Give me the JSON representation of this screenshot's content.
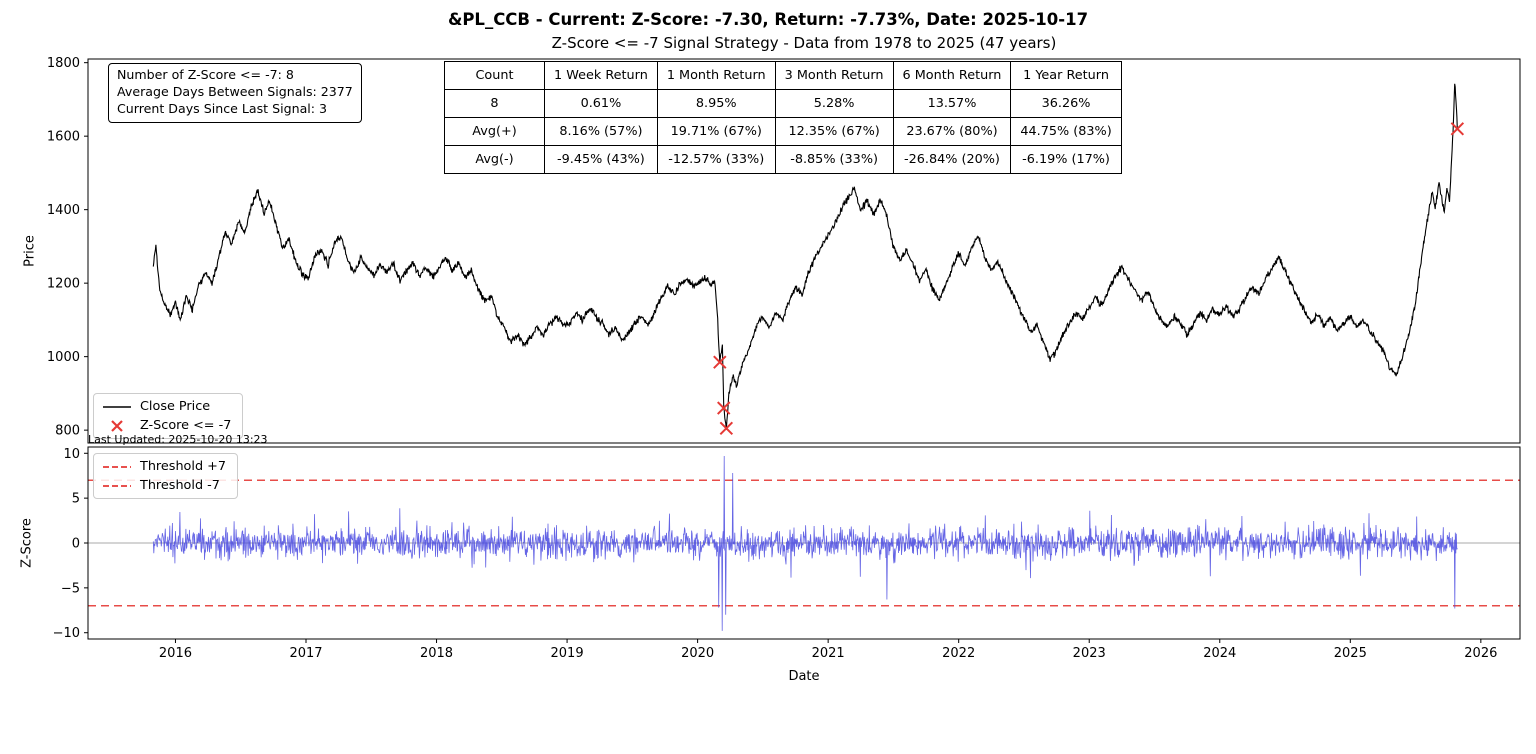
{
  "title": "&PL_CCB - Current: Z-Score: -7.30, Return: -7.73%, Date: 2025-10-17",
  "subtitle": "Z-Score <= -7 Signal Strategy - Data from 1978 to 2025 (47 years)",
  "last_updated": "Last Updated: 2025-10-20 13:23",
  "info_box": {
    "lines": [
      "Number of Z-Score <= -7: 8",
      "Average Days Between Signals: 2377",
      "Current Days Since Last Signal: 3"
    ]
  },
  "stats_table": {
    "headers": [
      "Count",
      "1 Week Return",
      "1 Month Return",
      "3 Month Return",
      "6 Month Return",
      "1 Year Return"
    ],
    "rows": [
      [
        "8",
        "0.61%",
        "8.95%",
        "5.28%",
        "13.57%",
        "36.26%"
      ],
      [
        "Avg(+)",
        "8.16% (57%)",
        "19.71% (67%)",
        "12.35% (67%)",
        "23.67% (80%)",
        "44.75% (83%)"
      ],
      [
        "Avg(-)",
        "-9.45% (43%)",
        "-12.57% (33%)",
        "-8.85% (33%)",
        "-26.84% (20%)",
        "-6.19% (17%)"
      ]
    ]
  },
  "price_legend": [
    {
      "label": "Close Price",
      "type": "line",
      "color": "#000000"
    },
    {
      "label": "Z-Score <= -7",
      "type": "x-marker",
      "color": "#e53935"
    }
  ],
  "zscore_legend": [
    {
      "label": "Threshold +7",
      "type": "dashed-line",
      "color": "#e53935"
    },
    {
      "label": "Threshold -7",
      "type": "dashed-line",
      "color": "#e53935"
    }
  ],
  "axes": {
    "price_label": "Price",
    "zscore_label": "Z-Score",
    "date_label": "Date",
    "price_ticks": [
      800,
      1000,
      1200,
      1400,
      1600,
      1800
    ],
    "zscore_ticks": [
      -10,
      -5,
      0,
      5,
      10
    ],
    "year_ticks": [
      2016,
      2017,
      2018,
      2019,
      2020,
      2021,
      2022,
      2023,
      2024,
      2025,
      2026
    ],
    "x_range": [
      2015.33,
      2026.3
    ],
    "price_range": [
      765,
      1810
    ],
    "zscore_range": [
      -10.7,
      10.7
    ]
  },
  "chart_data": [
    {
      "type": "line",
      "name": "price-panel",
      "ylabel": "Price",
      "ylim": [
        765,
        1810
      ],
      "series": [
        {
          "name": "Close Price",
          "color": "#000000",
          "noise_amp": 9,
          "noise_seed": 12,
          "anchors": [
            [
              2015.83,
              1250
            ],
            [
              2015.85,
              1300
            ],
            [
              2015.88,
              1185
            ],
            [
              2015.92,
              1140
            ],
            [
              2015.96,
              1115
            ],
            [
              2016.0,
              1150
            ],
            [
              2016.04,
              1100
            ],
            [
              2016.08,
              1165
            ],
            [
              2016.13,
              1130
            ],
            [
              2016.18,
              1195
            ],
            [
              2016.23,
              1230
            ],
            [
              2016.28,
              1200
            ],
            [
              2016.33,
              1265
            ],
            [
              2016.38,
              1340
            ],
            [
              2016.43,
              1305
            ],
            [
              2016.48,
              1365
            ],
            [
              2016.53,
              1340
            ],
            [
              2016.58,
              1410
            ],
            [
              2016.63,
              1450
            ],
            [
              2016.68,
              1390
            ],
            [
              2016.72,
              1425
            ],
            [
              2016.77,
              1360
            ],
            [
              2016.82,
              1295
            ],
            [
              2016.87,
              1320
            ],
            [
              2016.92,
              1260
            ],
            [
              2016.97,
              1225
            ],
            [
              2017.02,
              1215
            ],
            [
              2017.07,
              1275
            ],
            [
              2017.12,
              1290
            ],
            [
              2017.17,
              1250
            ],
            [
              2017.22,
              1310
            ],
            [
              2017.27,
              1330
            ],
            [
              2017.32,
              1260
            ],
            [
              2017.37,
              1230
            ],
            [
              2017.42,
              1270
            ],
            [
              2017.47,
              1240
            ],
            [
              2017.52,
              1220
            ],
            [
              2017.57,
              1250
            ],
            [
              2017.62,
              1230
            ],
            [
              2017.67,
              1255
            ],
            [
              2017.72,
              1210
            ],
            [
              2017.77,
              1235
            ],
            [
              2017.82,
              1255
            ],
            [
              2017.87,
              1220
            ],
            [
              2017.92,
              1245
            ],
            [
              2017.97,
              1215
            ],
            [
              2018.02,
              1245
            ],
            [
              2018.07,
              1270
            ],
            [
              2018.12,
              1235
            ],
            [
              2018.17,
              1255
            ],
            [
              2018.22,
              1215
            ],
            [
              2018.27,
              1235
            ],
            [
              2018.32,
              1185
            ],
            [
              2018.37,
              1150
            ],
            [
              2018.42,
              1165
            ],
            [
              2018.47,
              1105
            ],
            [
              2018.52,
              1080
            ],
            [
              2018.57,
              1040
            ],
            [
              2018.62,
              1060
            ],
            [
              2018.67,
              1030
            ],
            [
              2018.72,
              1055
            ],
            [
              2018.77,
              1080
            ],
            [
              2018.82,
              1060
            ],
            [
              2018.87,
              1090
            ],
            [
              2018.92,
              1110
            ],
            [
              2018.97,
              1085
            ],
            [
              2019.02,
              1095
            ],
            [
              2019.07,
              1120
            ],
            [
              2019.12,
              1100
            ],
            [
              2019.17,
              1130
            ],
            [
              2019.22,
              1110
            ],
            [
              2019.27,
              1090
            ],
            [
              2019.32,
              1060
            ],
            [
              2019.37,
              1080
            ],
            [
              2019.42,
              1045
            ],
            [
              2019.47,
              1065
            ],
            [
              2019.52,
              1090
            ],
            [
              2019.57,
              1110
            ],
            [
              2019.62,
              1085
            ],
            [
              2019.67,
              1120
            ],
            [
              2019.72,
              1160
            ],
            [
              2019.77,
              1190
            ],
            [
              2019.82,
              1170
            ],
            [
              2019.87,
              1200
            ],
            [
              2019.92,
              1210
            ],
            [
              2019.97,
              1195
            ],
            [
              2020.02,
              1205
            ],
            [
              2020.07,
              1215
            ],
            [
              2020.1,
              1195
            ],
            [
              2020.13,
              1205
            ],
            [
              2020.15,
              1120
            ],
            [
              2020.17,
              985
            ],
            [
              2020.19,
              1030
            ],
            [
              2020.2,
              860
            ],
            [
              2020.22,
              805
            ],
            [
              2020.24,
              900
            ],
            [
              2020.27,
              950
            ],
            [
              2020.3,
              920
            ],
            [
              2020.34,
              980
            ],
            [
              2020.38,
              1010
            ],
            [
              2020.42,
              1050
            ],
            [
              2020.46,
              1090
            ],
            [
              2020.5,
              1110
            ],
            [
              2020.55,
              1080
            ],
            [
              2020.6,
              1120
            ],
            [
              2020.65,
              1100
            ],
            [
              2020.7,
              1150
            ],
            [
              2020.75,
              1190
            ],
            [
              2020.8,
              1170
            ],
            [
              2020.85,
              1230
            ],
            [
              2020.9,
              1270
            ],
            [
              2020.95,
              1300
            ],
            [
              2021.0,
              1330
            ],
            [
              2021.05,
              1360
            ],
            [
              2021.1,
              1400
            ],
            [
              2021.15,
              1430
            ],
            [
              2021.2,
              1460
            ],
            [
              2021.25,
              1395
            ],
            [
              2021.3,
              1425
            ],
            [
              2021.35,
              1385
            ],
            [
              2021.4,
              1430
            ],
            [
              2021.45,
              1380
            ],
            [
              2021.5,
              1300
            ],
            [
              2021.55,
              1260
            ],
            [
              2021.6,
              1290
            ],
            [
              2021.65,
              1250
            ],
            [
              2021.7,
              1205
            ],
            [
              2021.75,
              1235
            ],
            [
              2021.8,
              1185
            ],
            [
              2021.85,
              1155
            ],
            [
              2021.9,
              1195
            ],
            [
              2021.95,
              1240
            ],
            [
              2022.0,
              1280
            ],
            [
              2022.05,
              1245
            ],
            [
              2022.1,
              1300
            ],
            [
              2022.15,
              1330
            ],
            [
              2022.2,
              1270
            ],
            [
              2022.25,
              1235
            ],
            [
              2022.3,
              1260
            ],
            [
              2022.35,
              1215
            ],
            [
              2022.4,
              1180
            ],
            [
              2022.45,
              1145
            ],
            [
              2022.5,
              1105
            ],
            [
              2022.55,
              1065
            ],
            [
              2022.6,
              1085
            ],
            [
              2022.65,
              1040
            ],
            [
              2022.7,
              990
            ],
            [
              2022.75,
              1020
            ],
            [
              2022.8,
              1060
            ],
            [
              2022.85,
              1090
            ],
            [
              2022.9,
              1120
            ],
            [
              2022.95,
              1105
            ],
            [
              2023.0,
              1135
            ],
            [
              2023.05,
              1160
            ],
            [
              2023.1,
              1140
            ],
            [
              2023.15,
              1180
            ],
            [
              2023.2,
              1220
            ],
            [
              2023.25,
              1245
            ],
            [
              2023.3,
              1210
            ],
            [
              2023.35,
              1180
            ],
            [
              2023.4,
              1155
            ],
            [
              2023.45,
              1175
            ],
            [
              2023.5,
              1130
            ],
            [
              2023.55,
              1100
            ],
            [
              2023.6,
              1080
            ],
            [
              2023.65,
              1110
            ],
            [
              2023.7,
              1090
            ],
            [
              2023.75,
              1060
            ],
            [
              2023.8,
              1090
            ],
            [
              2023.85,
              1120
            ],
            [
              2023.9,
              1100
            ],
            [
              2023.95,
              1130
            ],
            [
              2024.0,
              1115
            ],
            [
              2024.05,
              1140
            ],
            [
              2024.1,
              1105
            ],
            [
              2024.15,
              1130
            ],
            [
              2024.2,
              1160
            ],
            [
              2024.25,
              1190
            ],
            [
              2024.3,
              1170
            ],
            [
              2024.35,
              1210
            ],
            [
              2024.4,
              1240
            ],
            [
              2024.45,
              1270
            ],
            [
              2024.5,
              1235
            ],
            [
              2024.55,
              1195
            ],
            [
              2024.6,
              1160
            ],
            [
              2024.65,
              1125
            ],
            [
              2024.7,
              1095
            ],
            [
              2024.75,
              1115
            ],
            [
              2024.8,
              1085
            ],
            [
              2024.85,
              1105
            ],
            [
              2024.9,
              1070
            ],
            [
              2024.95,
              1090
            ],
            [
              2025.0,
              1110
            ],
            [
              2025.05,
              1080
            ],
            [
              2025.1,
              1100
            ],
            [
              2025.15,
              1070
            ],
            [
              2025.2,
              1045
            ],
            [
              2025.25,
              1015
            ],
            [
              2025.3,
              975
            ],
            [
              2025.35,
              950
            ],
            [
              2025.4,
              1000
            ],
            [
              2025.45,
              1060
            ],
            [
              2025.5,
              1150
            ],
            [
              2025.55,
              1280
            ],
            [
              2025.6,
              1390
            ],
            [
              2025.63,
              1450
            ],
            [
              2025.65,
              1400
            ],
            [
              2025.68,
              1475
            ],
            [
              2025.7,
              1430
            ],
            [
              2025.72,
              1390
            ],
            [
              2025.74,
              1460
            ],
            [
              2025.76,
              1420
            ],
            [
              2025.78,
              1560
            ],
            [
              2025.79,
              1640
            ],
            [
              2025.8,
              1750
            ],
            [
              2025.81,
              1690
            ],
            [
              2025.82,
              1620
            ]
          ]
        }
      ],
      "signals": {
        "name": "Z-Score <= -7",
        "color": "#e53935",
        "points": [
          [
            2020.17,
            985
          ],
          [
            2020.2,
            860
          ],
          [
            2020.22,
            805
          ],
          [
            2025.82,
            1620
          ]
        ]
      }
    },
    {
      "type": "line",
      "name": "zscore-panel",
      "ylabel": "Z-Score",
      "ylim": [
        -10.7,
        10.7
      ],
      "x_start": 2015.83,
      "x_end": 2025.82,
      "line_color": "#4a4ae0",
      "noise_scale": 1.7,
      "noise_seed": 99,
      "zero_line_color": "#aaaaaa",
      "thresholds": [
        7,
        -7
      ],
      "threshold_color": "#e53935",
      "spikes": [
        [
          2020.16,
          -7.2
        ],
        [
          2020.19,
          -9.8
        ],
        [
          2020.205,
          9.7
        ],
        [
          2020.215,
          -8.0
        ],
        [
          2020.27,
          7.8
        ],
        [
          2021.45,
          -6.3
        ],
        [
          2025.8,
          -7.3
        ]
      ],
      "current": {
        "zscore": -7.3,
        "return": "-7.73%",
        "date": "2025-10-17"
      }
    }
  ]
}
